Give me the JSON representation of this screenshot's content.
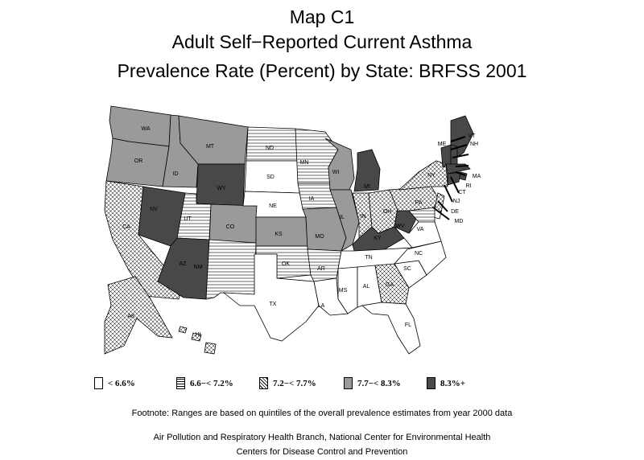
{
  "title": {
    "line1": "Map C1",
    "line2": "Adult Self−Reported Current Asthma",
    "line3": "Prevalence Rate (Percent) by State: BRFSS 2001"
  },
  "legend": [
    {
      "label": "< 6.6%",
      "fill": "none"
    },
    {
      "label": "6.6−< 7.2%",
      "fill": "hlines"
    },
    {
      "label": "7.2−< 7.7%",
      "fill": "crosshatch"
    },
    {
      "label": "7.7−< 8.3%",
      "fill": "gray"
    },
    {
      "label": "8.3%+",
      "fill": "dark"
    }
  ],
  "colors": {
    "gray": "#9a9a9a",
    "dark": "#484848",
    "outline": "#000000"
  },
  "states": [
    {
      "abbr": "WA",
      "cat": 3
    },
    {
      "abbr": "OR",
      "cat": 3
    },
    {
      "abbr": "CA",
      "cat": 2
    },
    {
      "abbr": "NV",
      "cat": 4
    },
    {
      "abbr": "ID",
      "cat": 3
    },
    {
      "abbr": "MT",
      "cat": 3
    },
    {
      "abbr": "WY",
      "cat": 4
    },
    {
      "abbr": "UT",
      "cat": 1
    },
    {
      "abbr": "CO",
      "cat": 3
    },
    {
      "abbr": "AZ",
      "cat": 4
    },
    {
      "abbr": "NM",
      "cat": 1
    },
    {
      "abbr": "ND",
      "cat": 1
    },
    {
      "abbr": "SD",
      "cat": 0
    },
    {
      "abbr": "NE",
      "cat": 0
    },
    {
      "abbr": "KS",
      "cat": 3
    },
    {
      "abbr": "OK",
      "cat": 1
    },
    {
      "abbr": "TX",
      "cat": 0
    },
    {
      "abbr": "MN",
      "cat": 1
    },
    {
      "abbr": "IA",
      "cat": 1
    },
    {
      "abbr": "MO",
      "cat": 3
    },
    {
      "abbr": "AR",
      "cat": 1
    },
    {
      "abbr": "LA",
      "cat": 0
    },
    {
      "abbr": "WI",
      "cat": 3
    },
    {
      "abbr": "IL",
      "cat": 3
    },
    {
      "abbr": "MI",
      "cat": 4
    },
    {
      "abbr": "IN",
      "cat": 2
    },
    {
      "abbr": "OH",
      "cat": 2
    },
    {
      "abbr": "KY",
      "cat": 4
    },
    {
      "abbr": "TN",
      "cat": 0
    },
    {
      "abbr": "MS",
      "cat": 0
    },
    {
      "abbr": "AL",
      "cat": 0
    },
    {
      "abbr": "GA",
      "cat": 2
    },
    {
      "abbr": "FL",
      "cat": 0
    },
    {
      "abbr": "SC",
      "cat": 0
    },
    {
      "abbr": "NC",
      "cat": 0
    },
    {
      "abbr": "VA",
      "cat": 0
    },
    {
      "abbr": "WV",
      "cat": 4
    },
    {
      "abbr": "PA",
      "cat": 2
    },
    {
      "abbr": "NY",
      "cat": 2
    },
    {
      "abbr": "ME",
      "cat": 4
    },
    {
      "abbr": "VT",
      "cat": 4
    },
    {
      "abbr": "NH",
      "cat": 4
    },
    {
      "abbr": "MA",
      "cat": 4
    },
    {
      "abbr": "RI",
      "cat": 4
    },
    {
      "abbr": "CT",
      "cat": 4
    },
    {
      "abbr": "NJ",
      "cat": 2
    },
    {
      "abbr": "DE",
      "cat": 0
    },
    {
      "abbr": "MD",
      "cat": 1
    },
    {
      "abbr": "AK",
      "cat": 2
    },
    {
      "abbr": "HI",
      "cat": 2
    }
  ],
  "footnote": "Footnote: Ranges are based on quintiles of the overall prevalence estimates from year 2000 data",
  "credit1": "Air Pollution and Respiratory Health Branch, National Center for Environmental Health",
  "credit2": "Centers for Disease Control and Prevention"
}
